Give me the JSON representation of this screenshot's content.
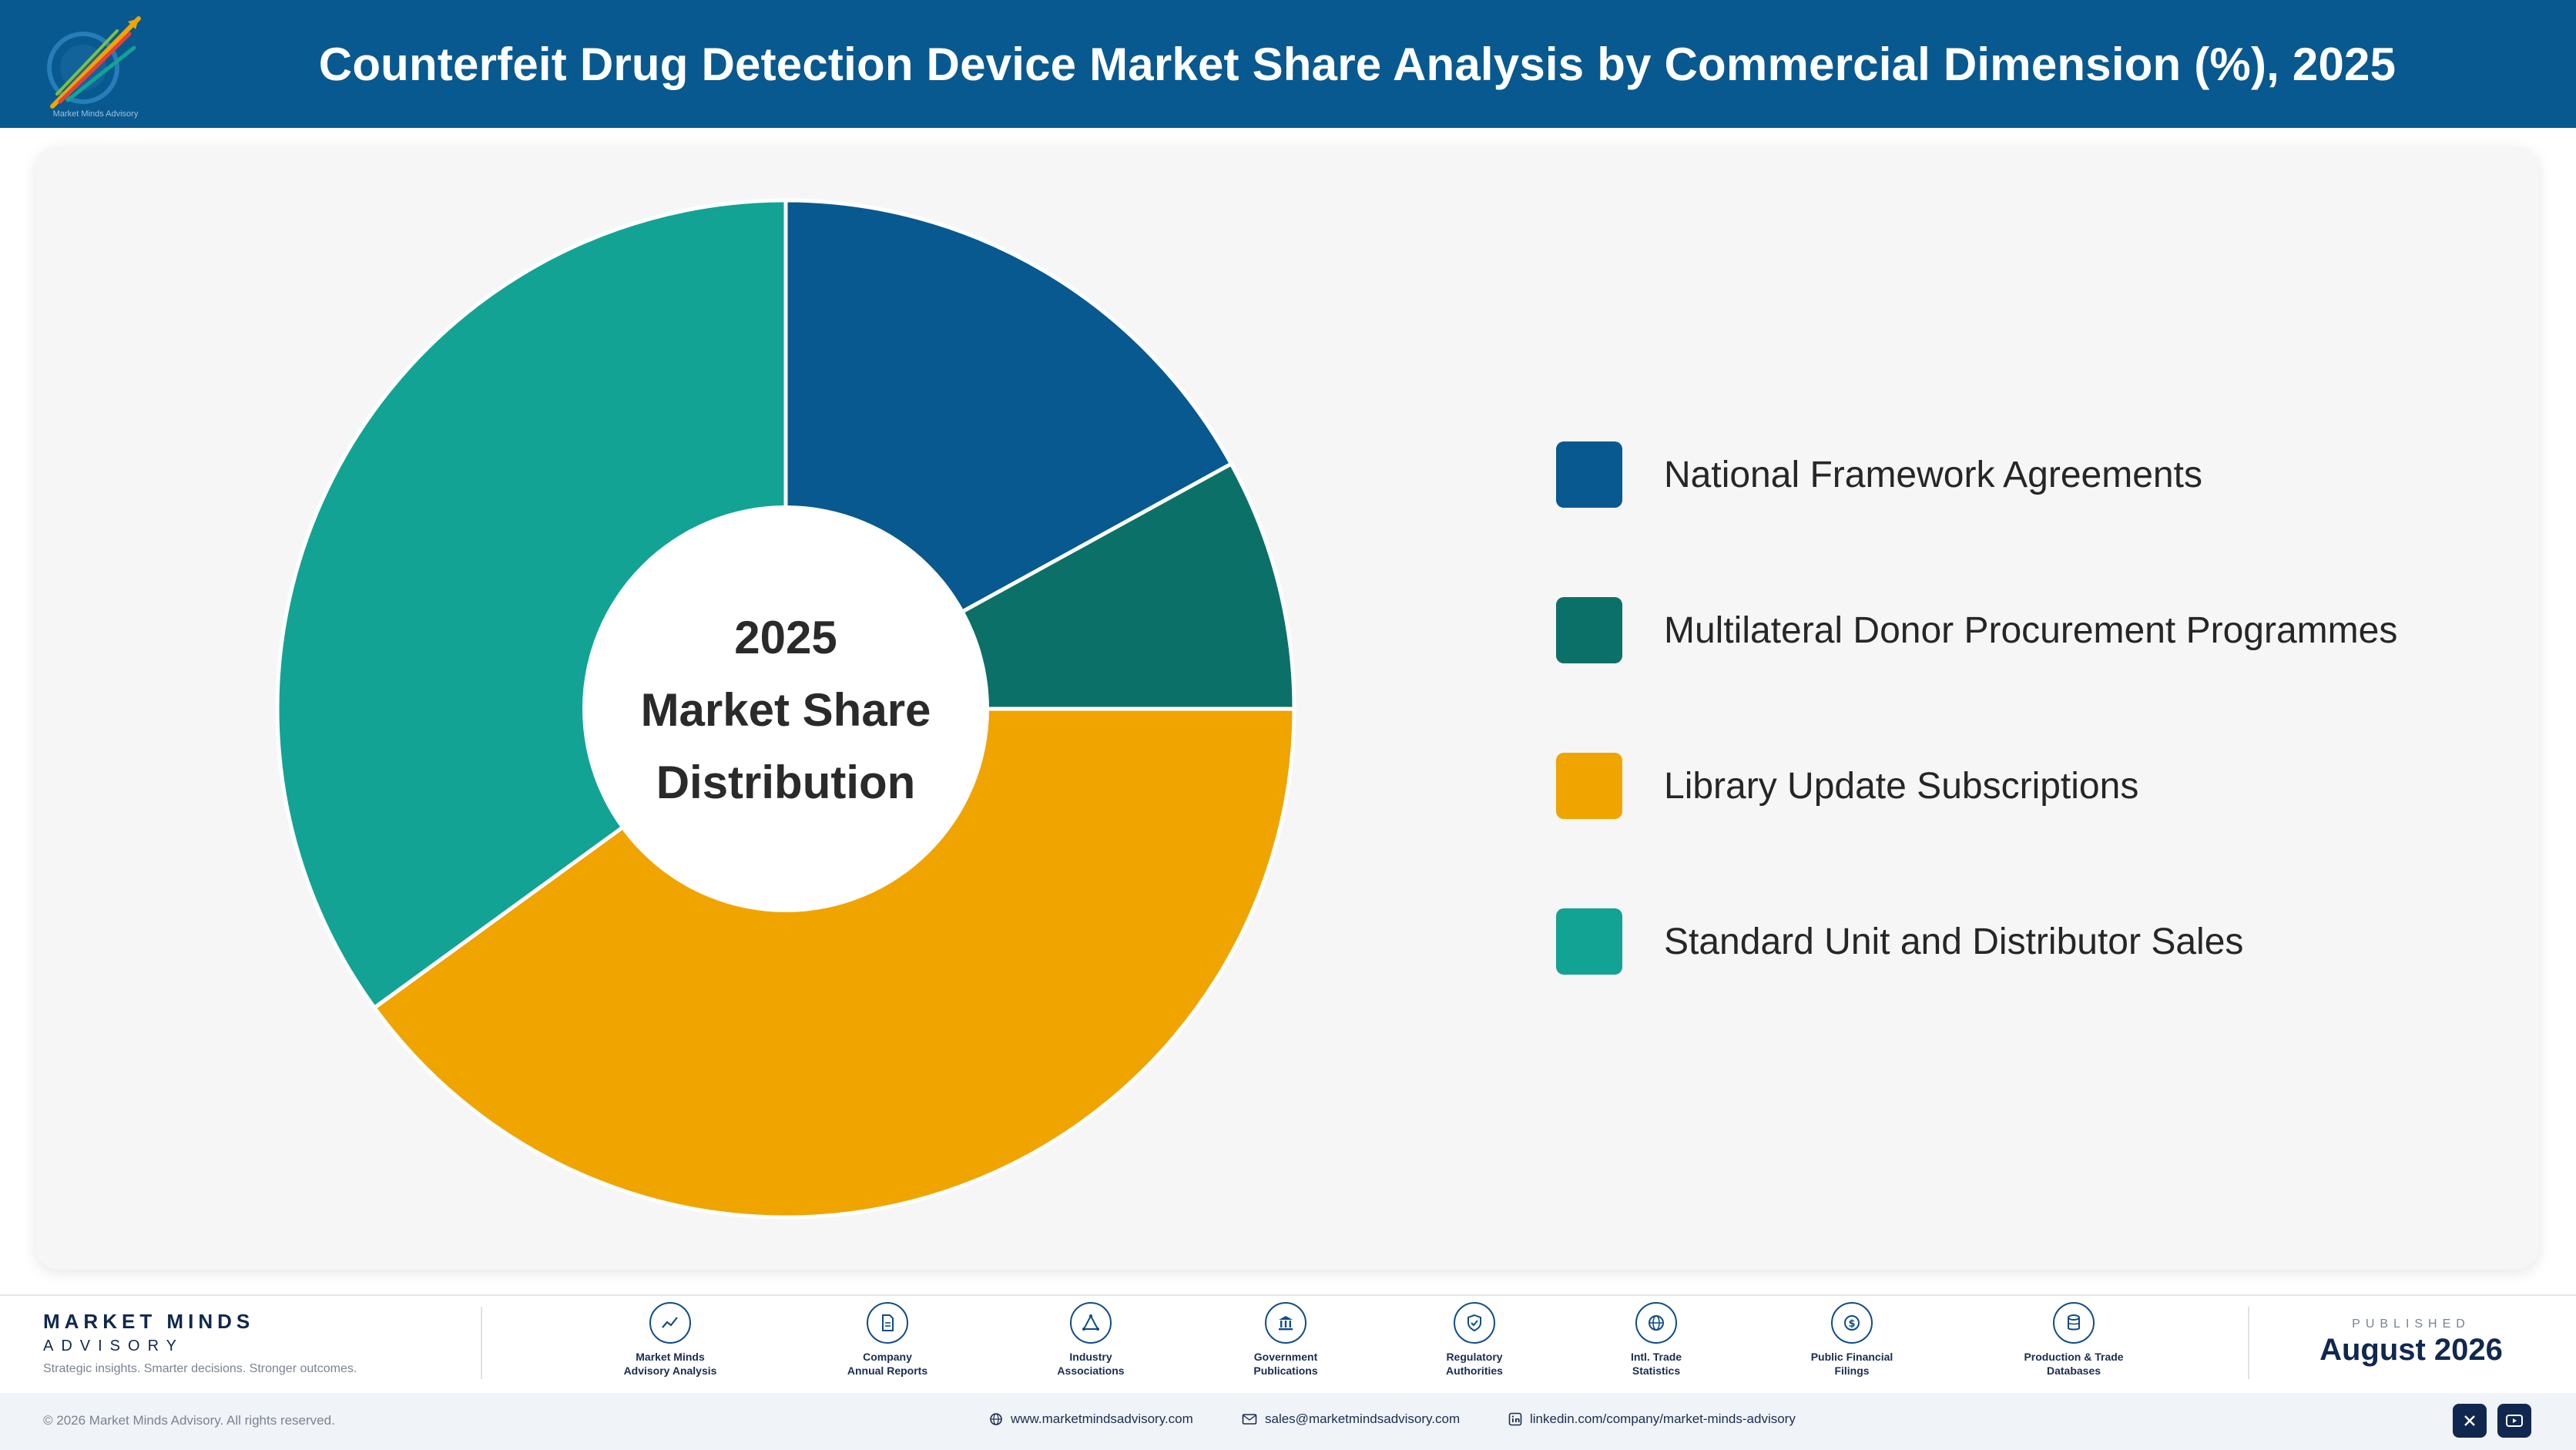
{
  "header": {
    "title": "Counterfeit Drug Detection Device Market Share Analysis by Commercial Dimension (%), 2025",
    "logo_caption": "Market Minds Advisory",
    "background": "#08598f"
  },
  "chart_data": {
    "type": "pie",
    "donut": true,
    "title": "Counterfeit Drug Detection Device Market Share Analysis by Commercial Dimension (%), 2025",
    "center_label": [
      "2025",
      "Market Share",
      "Distribution"
    ],
    "legend_position": "right",
    "categories": [
      "National Framework Agreements",
      "Multilateral Donor Procurement Programmes",
      "Library Update Subscriptions",
      "Standard Unit and Distributor Sales"
    ],
    "values": [
      17,
      8,
      40,
      35
    ],
    "colors": [
      "#08598f",
      "#0b7168",
      "#f0a400",
      "#12a394"
    ]
  },
  "footer": {
    "brand_name": "MARKET MINDS",
    "brand_sub": "ADVISORY",
    "tagline": "Strategic insights. Smarter decisions. Stronger outcomes.",
    "sources": [
      {
        "label": "Market Minds\nAdvisory Analysis",
        "icon": "trend-line-icon"
      },
      {
        "label": "Company\nAnnual Reports",
        "icon": "document-icon"
      },
      {
        "label": "Industry\nAssociations",
        "icon": "network-icon"
      },
      {
        "label": "Government\nPublications",
        "icon": "building-icon"
      },
      {
        "label": "Regulatory\nAuthorities",
        "icon": "shield-check-icon"
      },
      {
        "label": "Intl. Trade\nStatistics",
        "icon": "globe-icon"
      },
      {
        "label": "Public Financial\nFilings",
        "icon": "dollar-coin-icon"
      },
      {
        "label": "Production & Trade\nDatabases",
        "icon": "database-icon"
      }
    ],
    "published_label": "PUBLISHED",
    "published_date": "August 2026",
    "copyright": "© 2026 Market Minds Advisory. All rights reserved.",
    "website": "www.marketmindsadvisory.com",
    "email": "sales@marketmindsadvisory.com",
    "linkedin": "linkedin.com/company/market-minds-advisory",
    "social_icons": [
      "x-icon",
      "youtube-icon"
    ]
  }
}
